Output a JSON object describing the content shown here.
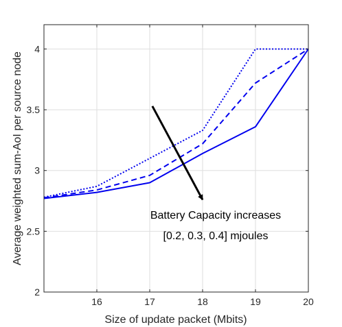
{
  "chart_data": {
    "type": "line",
    "title": "",
    "xlabel": "Size of update packet (Mbits)",
    "ylabel": "Average weighted sum-AoI per source node",
    "xlim": [
      15,
      20
    ],
    "ylim": [
      2,
      4.2
    ],
    "xticks": [
      "16",
      "17",
      "18",
      "19",
      "20"
    ],
    "yticks": [
      "2",
      "2.5",
      "3",
      "3.5",
      "4"
    ],
    "grid": true,
    "legend": "none",
    "series_color": "#0000ee",
    "series": [
      {
        "style": "solid",
        "x": [
          15,
          16,
          17,
          18,
          19,
          20
        ],
        "values": [
          2.77,
          2.82,
          2.9,
          3.14,
          3.36,
          4.0
        ]
      },
      {
        "style": "dashed",
        "x": [
          15,
          16,
          17,
          18,
          19,
          20
        ],
        "values": [
          2.775,
          2.84,
          2.96,
          3.22,
          3.72,
          4.0
        ]
      },
      {
        "style": "dotted",
        "x": [
          15,
          16,
          17,
          18,
          19,
          20
        ],
        "values": [
          2.78,
          2.87,
          3.1,
          3.33,
          4.0,
          4.0
        ]
      }
    ],
    "annotations": {
      "line1": "Battery Capacity increases",
      "line2": "[0.2, 0.3, 0.4] mjoules",
      "arrow": {
        "from": [
          17.05,
          3.53
        ],
        "to": [
          18.0,
          2.76
        ]
      }
    }
  }
}
